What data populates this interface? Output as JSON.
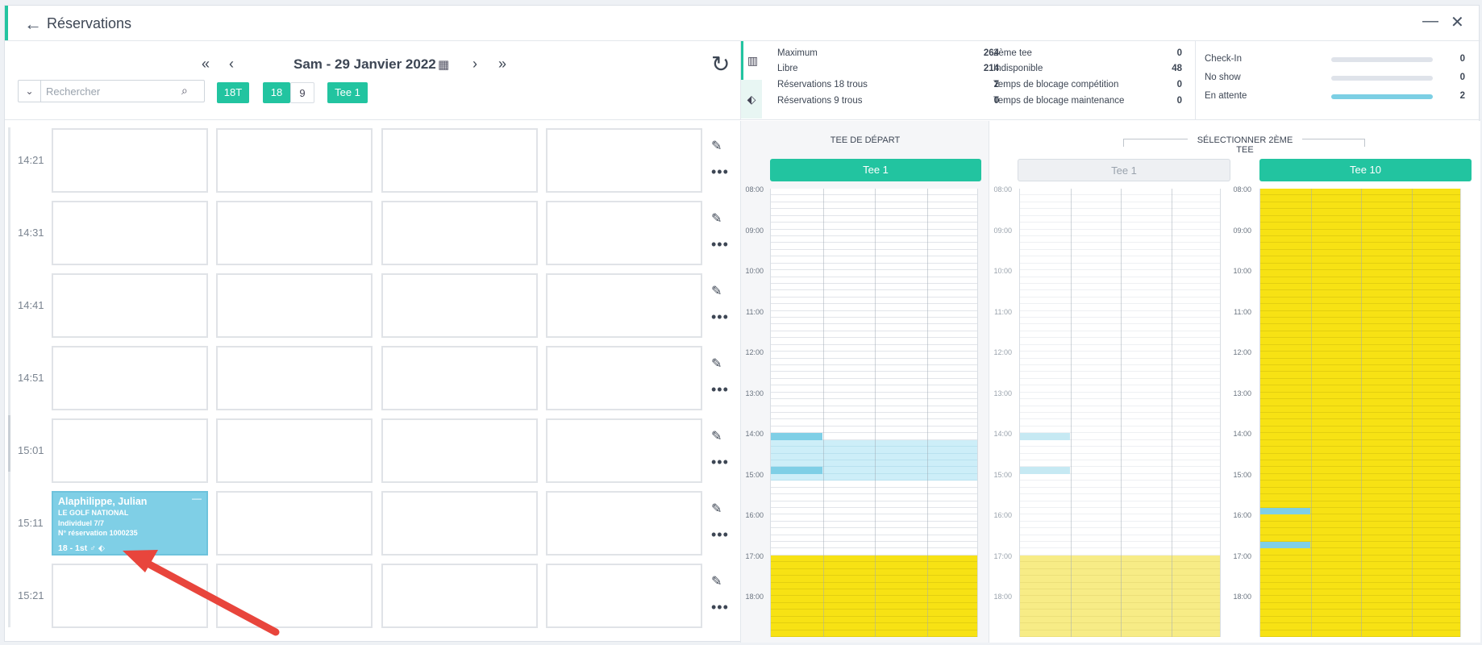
{
  "window": {
    "title": "Réservations"
  },
  "toolbar": {
    "date": "Sam - 29 Janvier 2022",
    "search_placeholder": "Rechercher",
    "chips": [
      "18T",
      "18",
      "9",
      "Tee 1"
    ]
  },
  "stats": {
    "col1": [
      {
        "label": "Maximum",
        "value": "264"
      },
      {
        "label": "Libre",
        "value": "214"
      },
      {
        "label": "Réservations 18 trous",
        "value": "2"
      },
      {
        "label": "Réservations 9 trous",
        "value": "0"
      }
    ],
    "col2": [
      {
        "label": "2ème tee",
        "value": "0"
      },
      {
        "label": "Indisponible",
        "value": "48"
      },
      {
        "label": "Temps de blocage compétition",
        "value": "0"
      },
      {
        "label": "Temps de blocage maintenance",
        "value": "0"
      }
    ],
    "col3": [
      {
        "label": "Check-In",
        "value": "0",
        "level": 0
      },
      {
        "label": "No show",
        "value": "0",
        "level": 0
      },
      {
        "label": "En attente",
        "value": "2",
        "level": 1
      }
    ]
  },
  "grid": {
    "times": [
      "14:21",
      "14:31",
      "14:41",
      "14:51",
      "15:01",
      "15:11",
      "15:21"
    ],
    "booking": {
      "name": "Alaphilippe, Julian",
      "club": "LE GOLF NATIONAL",
      "type": "Individuel 7/7",
      "reservation": "N° réservation 1000235",
      "holes": "18 - 1st ♂ ⬖"
    }
  },
  "panels": {
    "depart_title": "TEE DE DÉPART",
    "second_title": "SÉLECTIONNER 2ÈME TEE",
    "tee_depart": "Tee 1",
    "tee_second_a": "Tee 1",
    "tee_second_b": "Tee 10",
    "hours": [
      "08:00",
      "09:00",
      "10:00",
      "11:00",
      "12:00",
      "13:00",
      "14:00",
      "15:00",
      "16:00",
      "17:00",
      "18:00"
    ],
    "colors": {
      "free": "#ffffff",
      "blocked": "#f7e214",
      "blocked_faded": "#f7ec86",
      "booked": "#7fcfe6",
      "selected": "#cdeef8"
    }
  }
}
